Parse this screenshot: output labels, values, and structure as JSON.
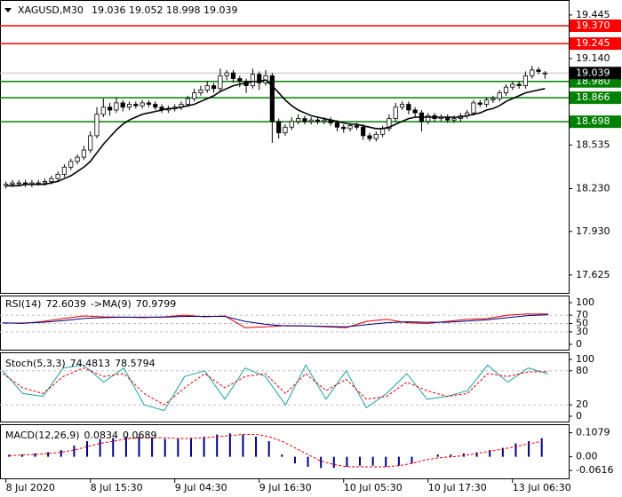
{
  "chart_data": [
    {
      "type": "candlestick",
      "symbol": "XAGUSD,M30",
      "categories": [
        "8 Jul 2020",
        null,
        null,
        null,
        null,
        null,
        null,
        null,
        null,
        null,
        null,
        null,
        null,
        "8 Jul 15:30",
        null,
        null,
        null,
        null,
        null,
        null,
        null,
        null,
        null,
        null,
        null,
        null,
        "9 Jul 04:30",
        null,
        null,
        null,
        null,
        null,
        null,
        null,
        null,
        null,
        null,
        null,
        null,
        "9 Jul 16:30",
        null,
        null,
        null,
        null,
        null,
        null,
        null,
        null,
        null,
        null,
        null,
        null,
        "10 Jul 05:30",
        null,
        null,
        null,
        null,
        null,
        null,
        null,
        null,
        null,
        null,
        null,
        null,
        "10 Jul 17:30",
        null,
        null,
        null,
        null,
        null,
        null,
        null,
        null,
        null,
        null,
        null,
        null,
        "13 Jul 06:30",
        null,
        null,
        null,
        null,
        null
      ],
      "open": [
        18.25,
        18.26,
        18.27,
        18.27,
        18.26,
        18.27,
        18.27,
        18.28,
        18.3,
        18.33,
        18.38,
        18.42,
        18.45,
        18.5,
        18.6,
        18.75,
        18.8,
        18.78,
        18.83,
        18.8,
        18.82,
        18.81,
        18.83,
        18.82,
        18.8,
        18.78,
        18.79,
        18.8,
        18.82,
        18.86,
        18.9,
        18.92,
        18.95,
        18.93,
        19.02,
        19.04,
        19.0,
        18.98,
        18.95,
        19.03,
        18.97,
        19.02,
        18.7,
        18.62,
        18.66,
        18.7,
        18.72,
        18.7,
        18.71,
        18.7,
        18.71,
        18.69,
        18.66,
        18.65,
        18.67,
        18.66,
        18.6,
        18.58,
        18.61,
        18.65,
        18.72,
        18.8,
        18.82,
        18.78,
        18.76,
        18.7,
        18.74,
        18.72,
        18.73,
        18.71,
        18.72,
        18.74,
        18.76,
        18.83,
        18.82,
        18.85,
        18.86,
        18.9,
        18.94,
        18.96,
        18.95,
        19.02,
        19.06,
        19.036
      ],
      "high": [
        18.28,
        18.29,
        18.29,
        18.29,
        18.29,
        18.29,
        18.3,
        18.32,
        18.35,
        18.4,
        18.44,
        18.47,
        18.53,
        18.63,
        18.8,
        18.86,
        18.83,
        18.87,
        18.85,
        18.84,
        18.84,
        18.85,
        18.85,
        18.84,
        18.82,
        18.81,
        18.82,
        18.84,
        18.88,
        18.93,
        18.95,
        18.98,
        18.97,
        19.07,
        19.06,
        19.06,
        19.02,
        19.0,
        19.07,
        19.05,
        19.06,
        19.04,
        18.72,
        18.68,
        18.73,
        18.75,
        18.74,
        18.73,
        18.73,
        18.73,
        18.73,
        18.71,
        18.68,
        18.69,
        18.69,
        18.68,
        18.62,
        18.63,
        18.67,
        18.75,
        18.83,
        18.84,
        18.84,
        18.8,
        18.78,
        18.76,
        18.76,
        18.75,
        18.75,
        18.74,
        18.76,
        18.78,
        18.85,
        18.85,
        18.87,
        18.88,
        18.92,
        18.96,
        18.98,
        18.98,
        19.05,
        19.09,
        19.08,
        19.052
      ],
      "low": [
        18.23,
        18.24,
        18.25,
        18.24,
        18.24,
        18.25,
        18.25,
        18.26,
        18.28,
        18.31,
        18.36,
        18.4,
        18.43,
        18.48,
        18.58,
        18.73,
        18.74,
        18.76,
        18.77,
        18.78,
        18.79,
        18.79,
        18.8,
        18.78,
        18.76,
        18.76,
        18.77,
        18.78,
        18.8,
        18.84,
        18.88,
        18.9,
        18.9,
        18.91,
        18.99,
        18.97,
        18.94,
        18.9,
        18.93,
        18.92,
        18.95,
        18.55,
        18.58,
        18.6,
        18.64,
        18.68,
        18.68,
        18.68,
        18.68,
        18.68,
        18.67,
        18.63,
        18.62,
        18.63,
        18.64,
        18.57,
        18.56,
        18.56,
        18.59,
        18.63,
        18.7,
        18.78,
        18.75,
        18.73,
        18.63,
        18.68,
        18.7,
        18.7,
        18.69,
        18.69,
        18.7,
        18.72,
        18.74,
        18.8,
        18.8,
        18.83,
        18.84,
        18.88,
        18.92,
        18.93,
        18.93,
        19.0,
        19.03,
        18.998
      ],
      "close": [
        18.26,
        18.27,
        18.27,
        18.26,
        18.27,
        18.27,
        18.28,
        18.3,
        18.33,
        18.38,
        18.42,
        18.45,
        18.5,
        18.6,
        18.75,
        18.8,
        18.78,
        18.83,
        18.8,
        18.82,
        18.81,
        18.83,
        18.82,
        18.8,
        18.78,
        18.79,
        18.8,
        18.82,
        18.86,
        18.9,
        18.92,
        18.95,
        18.93,
        19.02,
        19.04,
        19.0,
        18.98,
        18.95,
        19.03,
        18.97,
        19.02,
        18.7,
        18.62,
        18.66,
        18.7,
        18.72,
        18.7,
        18.71,
        18.7,
        18.71,
        18.69,
        18.66,
        18.65,
        18.67,
        18.66,
        18.6,
        18.58,
        18.61,
        18.65,
        18.72,
        18.8,
        18.82,
        18.78,
        18.76,
        18.7,
        18.74,
        18.72,
        18.73,
        18.71,
        18.72,
        18.74,
        18.76,
        18.83,
        18.82,
        18.85,
        18.86,
        18.9,
        18.94,
        18.96,
        18.95,
        19.02,
        19.06,
        19.05,
        19.039
      ],
      "ma": {
        "color": "#000000",
        "values": [
          18.25,
          18.25,
          18.25,
          18.26,
          18.26,
          18.26,
          18.26,
          18.27,
          18.28,
          18.3,
          18.32,
          18.35,
          18.38,
          18.42,
          18.48,
          18.54,
          18.59,
          18.64,
          18.68,
          18.71,
          18.73,
          18.75,
          18.76,
          18.77,
          18.78,
          18.79,
          18.79,
          18.8,
          18.81,
          18.82,
          18.84,
          18.86,
          18.88,
          18.91,
          18.93,
          18.95,
          18.96,
          18.97,
          18.98,
          18.98,
          18.99,
          18.95,
          18.9,
          18.85,
          18.81,
          18.78,
          18.76,
          18.74,
          18.73,
          18.72,
          18.71,
          18.7,
          18.69,
          18.68,
          18.68,
          18.67,
          18.66,
          18.65,
          18.65,
          18.66,
          18.68,
          18.7,
          18.72,
          18.73,
          18.73,
          18.73,
          18.73,
          18.73,
          18.73,
          18.73,
          18.73,
          18.74,
          18.75,
          18.76,
          18.78,
          18.79,
          18.81,
          18.84,
          18.86,
          18.88,
          18.9,
          18.91,
          18.92,
          18.93
        ]
      },
      "ylim": [
        17.5,
        19.55
      ],
      "yticks": [
        19.445,
        {
          "value": 19.14,
          "label": "19.140"
        },
        18.535,
        {
          "value": 18.23,
          "label": "18.230"
        },
        {
          "value": 17.93,
          "label": "17.930"
        },
        17.625
      ],
      "levels": [
        {
          "value": 19.37,
          "label": "19.370",
          "color": "#ff0000"
        },
        {
          "value": 19.245,
          "label": "19.245",
          "color": "#ff0000"
        },
        {
          "value": 18.98,
          "label": "18.980",
          "color": "#008000"
        },
        {
          "value": 18.866,
          "label": "18.866",
          "color": "#008000"
        },
        {
          "value": 18.698,
          "label": "18.698",
          "color": "#008000"
        }
      ]
    },
    {
      "type": "line",
      "label": "RSI(14)",
      "value": 72.6039,
      "ma_label": "->MA(9)",
      "ma_value": 70.9799,
      "ylim": [
        0,
        100
      ],
      "yticks": [
        100,
        70,
        50,
        30,
        0
      ],
      "series": [
        {
          "color": "#e00000",
          "values": [
            52,
            50,
            55,
            62,
            68,
            66,
            65,
            64,
            66,
            70,
            66,
            68,
            40,
            42,
            45,
            44,
            42,
            40,
            55,
            60,
            52,
            50,
            55,
            60,
            62,
            70,
            73,
            72.6039
          ]
        },
        {
          "color": "#000080",
          "values": [
            51,
            51,
            53,
            57,
            62,
            64,
            65,
            65,
            65,
            67,
            67,
            67,
            55,
            48,
            44,
            44,
            43,
            42,
            47,
            52,
            54,
            53,
            53,
            56,
            59,
            64,
            69,
            70.9799
          ]
        }
      ]
    },
    {
      "type": "line",
      "label": "Stoch(5,3,3)",
      "value": 74.4813,
      "ma_value": 78.5794,
      "ylim": [
        0,
        100
      ],
      "yticks": [
        100,
        80,
        20,
        0
      ],
      "series": [
        {
          "color": "#20a0a0",
          "values": [
            80,
            40,
            35,
            85,
            90,
            60,
            85,
            20,
            10,
            70,
            80,
            30,
            85,
            70,
            20,
            90,
            30,
            80,
            15,
            40,
            75,
            30,
            35,
            45,
            90,
            60,
            85,
            74.4813
          ]
        },
        {
          "color": "#e00000",
          "dash": true,
          "values": [
            75,
            50,
            40,
            70,
            85,
            70,
            75,
            40,
            20,
            50,
            75,
            50,
            70,
            75,
            40,
            75,
            45,
            65,
            30,
            35,
            60,
            45,
            35,
            40,
            75,
            70,
            78,
            78.5794
          ]
        }
      ]
    },
    {
      "type": "bar",
      "label": "MACD(12,26,9)",
      "value": 0.0834,
      "ma_value": 0.0689,
      "ylim": [
        -0.085,
        0.13
      ],
      "yticks": [
        0.1079,
        {
          "value": 0,
          "label": "0.00"
        },
        -0.0616
      ],
      "color": "#000080",
      "values": [
        0.01,
        0.01,
        0.015,
        0.02,
        0.03,
        0.05,
        0.07,
        0.08,
        0.085,
        0.09,
        0.09,
        0.085,
        0.08,
        0.08,
        0.085,
        0.09,
        0.1,
        0.105,
        0.1,
        0.09,
        0.07,
        0.01,
        -0.03,
        -0.045,
        -0.05,
        -0.05,
        -0.045,
        -0.04,
        -0.04,
        -0.045,
        -0.04,
        -0.03,
        0,
        0.01,
        0.01,
        0.015,
        0.02,
        0.03,
        0.04,
        0.06,
        0.07,
        0.0834
      ],
      "line": {
        "color": "#e00000",
        "dash": true,
        "values": [
          0.005,
          0.008,
          0.01,
          0.015,
          0.02,
          0.03,
          0.045,
          0.06,
          0.07,
          0.08,
          0.085,
          0.085,
          0.085,
          0.082,
          0.082,
          0.085,
          0.09,
          0.095,
          0.1,
          0.1,
          0.09,
          0.07,
          0.04,
          0.01,
          -0.02,
          -0.035,
          -0.045,
          -0.045,
          -0.045,
          -0.045,
          -0.04,
          -0.03,
          -0.015,
          -0.005,
          0,
          0.005,
          0.015,
          0.025,
          0.035,
          0.045,
          0.058,
          0.0689
        ]
      }
    }
  ]
}
